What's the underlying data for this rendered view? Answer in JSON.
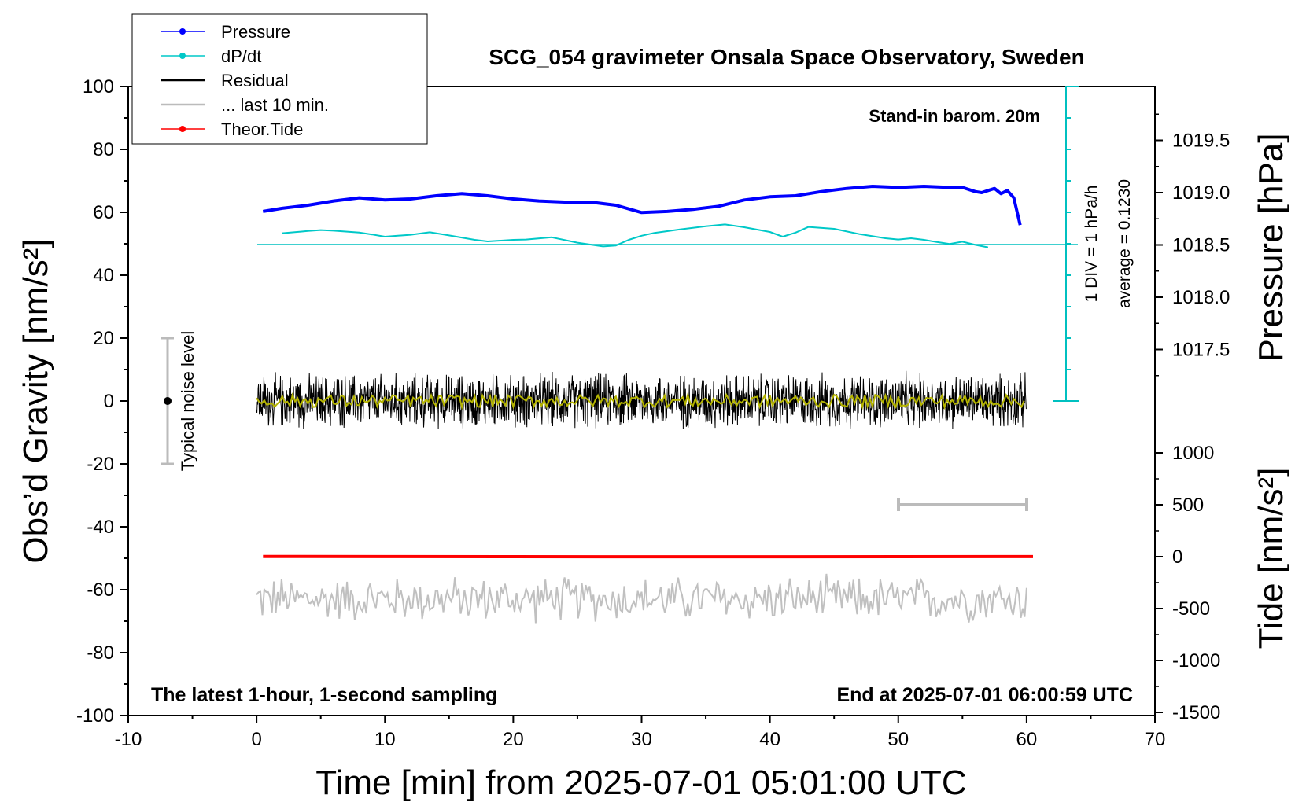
{
  "chart_data": {
    "type": "line",
    "title": "SCG_054 gravimeter Onsala Space Observatory, Sweden",
    "xlabel": "Time [min] from 2025-07-01 05:01:00 UTC",
    "xlim": [
      -10,
      70
    ],
    "x_ticks": [
      -10,
      0,
      10,
      20,
      30,
      40,
      50,
      60,
      70
    ],
    "left_axis": {
      "label": "Obs’d Gravity [nm/s²]",
      "ylim": [
        -100,
        100
      ],
      "ticks": [
        -100,
        -80,
        -60,
        -40,
        -20,
        0,
        20,
        40,
        60,
        80,
        100
      ]
    },
    "right_pressure_axis": {
      "label": "Pressure [hPa]",
      "ticks": [
        "1017.5",
        "1018.0",
        "1018.5",
        "1019.0",
        "1019.5"
      ]
    },
    "right_tide_axis": {
      "label": "Tide [nm/s²]",
      "ticks": [
        "-1500",
        "-1000",
        "-500",
        "0",
        "500",
        "1000"
      ]
    },
    "legend_position": "top-left",
    "legend": [
      {
        "name": "Pressure",
        "color": "#0000ff",
        "marker": "dot"
      },
      {
        "name": "dP/dt",
        "color": "#00c8c8",
        "marker": "dot"
      },
      {
        "name": "Residual",
        "color": "#000000",
        "marker": "line"
      },
      {
        "name": "... last 10 min.",
        "color": "#bbbbbb",
        "marker": "line"
      },
      {
        "name": "Theor.Tide",
        "color": "#ff0000",
        "marker": "dot"
      }
    ],
    "annotations": {
      "barometer": "Stand-in barom. 20m",
      "scale_div": "1 DIV = 1 hPa/h",
      "average": "average = 0.1230",
      "noise": "Typical noise level",
      "bottom_left": "The latest 1-hour, 1-second sampling",
      "bottom_right": "End at 2025-07-01 06:00:59 UTC"
    },
    "series": [
      {
        "name": "Pressure",
        "color": "#0000ff",
        "x": [
          0.5,
          2,
          4,
          6,
          8,
          10,
          12,
          14,
          16,
          18,
          20,
          22,
          24,
          26,
          28,
          30,
          32,
          34,
          36,
          38,
          40,
          42,
          44,
          46,
          48,
          50,
          52,
          54,
          55,
          56,
          56.5,
          57,
          57.5,
          58,
          58.5,
          59,
          59.5
        ],
        "y": [
          1018.82,
          1018.85,
          1018.88,
          1018.92,
          1018.95,
          1018.93,
          1018.94,
          1018.97,
          1018.99,
          1018.97,
          1018.94,
          1018.92,
          1018.91,
          1018.91,
          1018.88,
          1018.81,
          1018.82,
          1018.84,
          1018.87,
          1018.93,
          1018.96,
          1018.97,
          1019.01,
          1019.04,
          1019.06,
          1019.05,
          1019.06,
          1019.05,
          1019.05,
          1019.01,
          1019.0,
          1019.02,
          1019.04,
          1018.99,
          1019.02,
          1018.95,
          1018.69
        ]
      },
      {
        "name": "dP/dt",
        "color": "#00c8c8",
        "x": [
          2,
          4,
          5,
          6,
          8,
          9,
          10,
          12,
          13.5,
          15,
          17,
          18,
          20,
          21,
          23,
          25,
          27,
          28,
          29,
          30,
          31,
          33,
          35,
          36.5,
          38,
          40,
          41,
          42,
          43,
          45,
          47,
          49,
          50,
          51,
          52,
          53,
          54,
          55,
          56,
          57
        ],
        "y": [
          0.36,
          0.43,
          0.46,
          0.44,
          0.38,
          0.32,
          0.25,
          0.31,
          0.39,
          0.29,
          0.15,
          0.1,
          0.15,
          0.16,
          0.23,
          0.06,
          -0.06,
          -0.03,
          0.15,
          0.28,
          0.37,
          0.48,
          0.58,
          0.64,
          0.55,
          0.4,
          0.25,
          0.38,
          0.56,
          0.5,
          0.33,
          0.2,
          0.16,
          0.2,
          0.15,
          0.08,
          0.02,
          0.09,
          -0.01,
          -0.09
        ]
      },
      {
        "name": "Theor.Tide",
        "color": "#ff0000",
        "x": [
          0.5,
          10,
          20,
          30,
          40,
          50,
          60.5
        ],
        "y": [
          2,
          1,
          0,
          -1,
          -1,
          0,
          1
        ]
      }
    ],
    "residual_band": {
      "x_range": [
        0,
        60
      ],
      "center": 0,
      "amplitude": 10
    },
    "last10_band": {
      "x_range": [
        0,
        60
      ],
      "center": -63,
      "amplitude": 7
    },
    "noise_bar": {
      "x": -7,
      "y": 0,
      "low": -20,
      "high": 20
    },
    "last10_scale_bar": {
      "x_range": [
        50,
        60
      ],
      "y": -34
    }
  }
}
